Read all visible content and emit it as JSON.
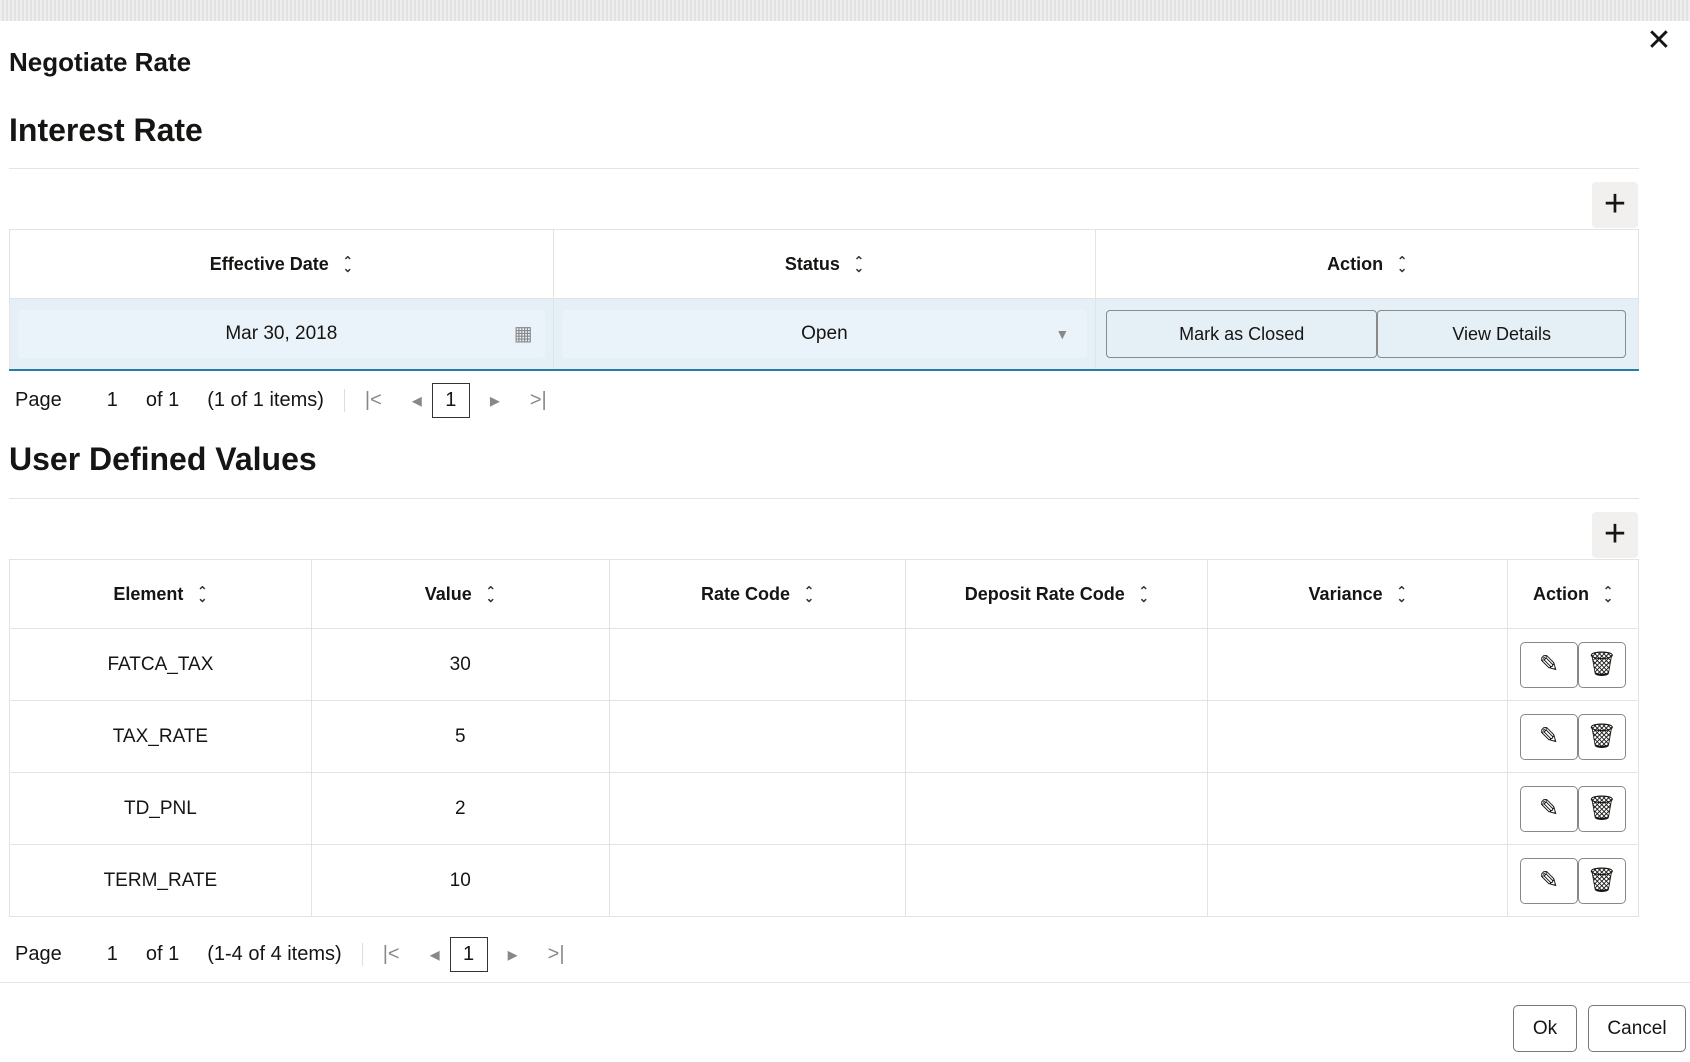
{
  "dialog": {
    "title": "Negotiate Rate",
    "close_icon": "close-icon"
  },
  "interest_rate": {
    "heading": "Interest Rate",
    "add_icon": "plus-icon",
    "columns": [
      "Effective Date",
      "Status",
      "Action"
    ],
    "row": {
      "effective_date": "Mar 30, 2018",
      "status": "Open",
      "mark_closed": "Mark as Closed",
      "view_details": "View Details"
    },
    "pager": {
      "page_label": "Page",
      "page": "1",
      "of": "of 1",
      "items": "(1 of 1 items)",
      "current": "1"
    }
  },
  "user_defined": {
    "heading": "User Defined Values",
    "add_icon": "plus-icon",
    "columns": [
      "Element",
      "Value",
      "Rate Code",
      "Deposit Rate Code",
      "Variance",
      "Action"
    ],
    "rows": [
      {
        "element": "FATCA_TAX",
        "value": "30",
        "rate_code": "",
        "deposit_rate_code": "",
        "variance": ""
      },
      {
        "element": "TAX_RATE",
        "value": "5",
        "rate_code": "",
        "deposit_rate_code": "",
        "variance": ""
      },
      {
        "element": "TD_PNL",
        "value": "2",
        "rate_code": "",
        "deposit_rate_code": "",
        "variance": ""
      },
      {
        "element": "TERM_RATE",
        "value": "10",
        "rate_code": "",
        "deposit_rate_code": "",
        "variance": ""
      }
    ],
    "pager": {
      "page_label": "Page",
      "page": "1",
      "of": "of 1",
      "items": "(1-4 of 4 items)",
      "current": "1"
    }
  },
  "footer": {
    "ok": "Ok",
    "cancel": "Cancel"
  }
}
